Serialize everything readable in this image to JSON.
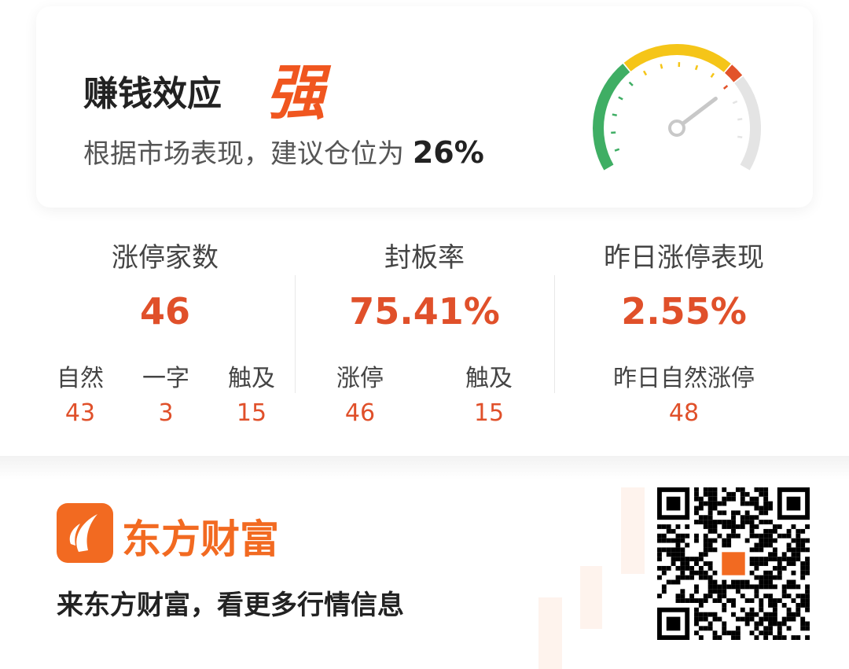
{
  "header": {
    "title": "赚钱效应",
    "strength": "强",
    "advice_prefix": "根据市场表现，建议仓位为",
    "position": "26%"
  },
  "gauge": {
    "needle_level_percent": 72,
    "colors": {
      "green": "#3fae64",
      "yellow": "#f5c518",
      "red": "#e2532a",
      "gray": "#e4e4e4"
    }
  },
  "stats": [
    {
      "label": "涨停家数",
      "value": "46",
      "subs": [
        {
          "label": "自然",
          "value": "43"
        },
        {
          "label": "一字",
          "value": "3"
        },
        {
          "label": "触及",
          "value": "15"
        }
      ]
    },
    {
      "label": "封板率",
      "value": "75.41%",
      "subs": [
        {
          "label": "涨停",
          "value": "46"
        },
        {
          "label": "触及",
          "value": "15"
        }
      ]
    },
    {
      "label": "昨日涨停表现",
      "value": "2.55%",
      "subs": [
        {
          "label": "昨日自然涨停",
          "value": "48"
        }
      ]
    }
  ],
  "footer": {
    "brand": "东方财富",
    "slogan": "来东方财富，看更多行情信息",
    "accent": "#f26a21"
  }
}
